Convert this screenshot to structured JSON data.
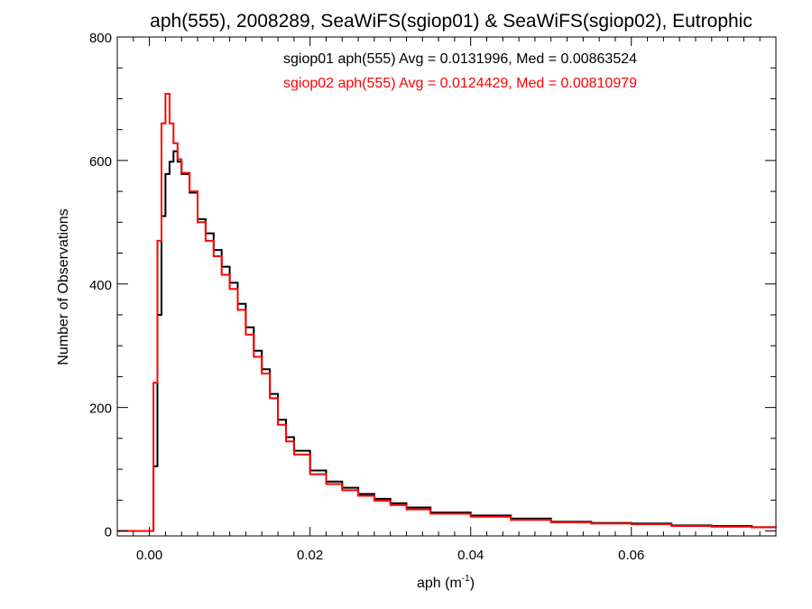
{
  "chart_data": {
    "type": "line",
    "title": "aph(555), 2008289, SeaWiFS(sgiop01) & SeaWiFS(sgiop02), Eutrophic",
    "xlabel": {
      "base": "aph (m",
      "sup": "-1",
      "suffix": ")"
    },
    "ylabel": "Number of Observations",
    "xlim": [
      -0.004,
      0.078
    ],
    "ylim": [
      -8,
      800
    ],
    "x_ticks": [
      0.0,
      0.02,
      0.04,
      0.06
    ],
    "x_tick_labels": [
      "0.00",
      "0.02",
      "0.04",
      "0.06"
    ],
    "y_ticks": [
      0,
      200,
      400,
      600,
      800
    ],
    "y_tick_labels": [
      "0",
      "200",
      "400",
      "600",
      "800"
    ],
    "grid": false,
    "legend_placement": "top-center",
    "series": [
      {
        "name": "sgiop01 aph(555) Avg = 0.0131996, Med = 0.00863524",
        "color": "#000000",
        "x": [
          -0.004,
          0.0,
          0.0005,
          0.001,
          0.0015,
          0.002,
          0.0025,
          0.003,
          0.0035,
          0.004,
          0.005,
          0.006,
          0.007,
          0.008,
          0.009,
          0.01,
          0.011,
          0.012,
          0.013,
          0.014,
          0.015,
          0.016,
          0.017,
          0.018,
          0.02,
          0.022,
          0.024,
          0.026,
          0.028,
          0.03,
          0.032,
          0.035,
          0.04,
          0.045,
          0.05,
          0.055,
          0.06,
          0.065,
          0.07,
          0.075,
          0.078
        ],
        "values": [
          0,
          0,
          105,
          350,
          510,
          578,
          598,
          615,
          598,
          578,
          548,
          505,
          482,
          455,
          428,
          402,
          368,
          330,
          292,
          262,
          222,
          180,
          152,
          130,
          98,
          80,
          70,
          60,
          52,
          45,
          38,
          30,
          25,
          20,
          15,
          13,
          12,
          9,
          8,
          6,
          5
        ]
      },
      {
        "name": "sgiop02 aph(555) Avg = 0.0124429, Med = 0.00810979",
        "color": "#ff0000",
        "x": [
          -0.004,
          0.0,
          0.0005,
          0.001,
          0.0015,
          0.002,
          0.0025,
          0.003,
          0.0035,
          0.004,
          0.005,
          0.006,
          0.007,
          0.008,
          0.009,
          0.01,
          0.011,
          0.012,
          0.013,
          0.014,
          0.015,
          0.016,
          0.017,
          0.018,
          0.02,
          0.022,
          0.024,
          0.026,
          0.028,
          0.03,
          0.032,
          0.035,
          0.04,
          0.045,
          0.05,
          0.055,
          0.06,
          0.065,
          0.07,
          0.075,
          0.078
        ],
        "values": [
          0,
          0,
          240,
          470,
          660,
          708,
          660,
          628,
          602,
          580,
          550,
          500,
          470,
          445,
          415,
          392,
          358,
          318,
          282,
          255,
          215,
          172,
          145,
          124,
          92,
          76,
          66,
          57,
          49,
          42,
          35,
          28,
          23,
          18,
          14,
          12,
          11,
          8,
          7,
          6,
          5
        ]
      }
    ]
  }
}
